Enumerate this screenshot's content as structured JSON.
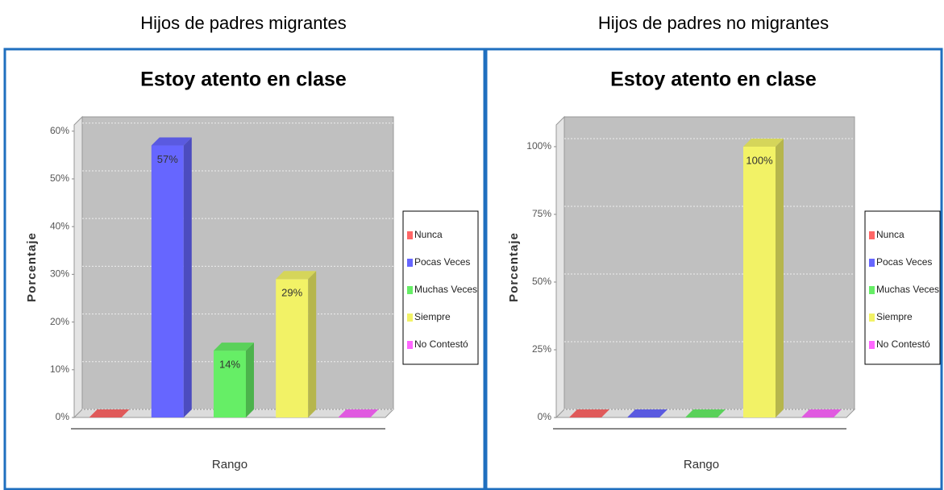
{
  "chart_data": [
    {
      "type": "bar",
      "caption": "Hijos de padres migrantes",
      "title": "Estoy atento en clase",
      "x_label": "Rango",
      "y_label": "Porcentaje",
      "categories": [
        "Nunca",
        "Pocas Veces",
        "Muchas Veces",
        "Siempre",
        "No Contestó"
      ],
      "values": [
        0,
        57,
        14,
        29,
        0
      ],
      "value_labels": [
        null,
        "57%",
        "14%",
        "29%",
        null
      ],
      "colors": [
        "#ff6666",
        "#6666ff",
        "#66ee66",
        "#f2f266",
        "#ff66ff"
      ],
      "ylim": [
        0,
        63
      ],
      "yticks": [
        {
          "value": 0,
          "label": "0%"
        },
        {
          "value": 10,
          "label": "10%"
        },
        {
          "value": 20,
          "label": "20%"
        },
        {
          "value": 30,
          "label": "30%"
        },
        {
          "value": 40,
          "label": "40%"
        },
        {
          "value": 50,
          "label": "50%"
        },
        {
          "value": 60,
          "label": "60%"
        }
      ],
      "grid": true,
      "legend": "right"
    },
    {
      "type": "bar",
      "caption": "Hijos de padres no migrantes",
      "title": "Estoy atento en clase",
      "x_label": "Rango",
      "y_label": "Porcentaje",
      "categories": [
        "Nunca",
        "Pocas Veces",
        "Muchas Veces",
        "Siempre",
        "No Contestó"
      ],
      "values": [
        0,
        0,
        0,
        100,
        0
      ],
      "value_labels": [
        null,
        null,
        null,
        "100%",
        null
      ],
      "colors": [
        "#ff6666",
        "#6666ff",
        "#66ee66",
        "#f2f266",
        "#ff66ff"
      ],
      "ylim": [
        0,
        111
      ],
      "yticks": [
        {
          "value": 0,
          "label": "0%"
        },
        {
          "value": 25,
          "label": "25%"
        },
        {
          "value": 50,
          "label": "50%"
        },
        {
          "value": 75,
          "label": "75%"
        },
        {
          "value": 100,
          "label": "100%"
        }
      ],
      "grid": true,
      "legend": "right"
    }
  ]
}
